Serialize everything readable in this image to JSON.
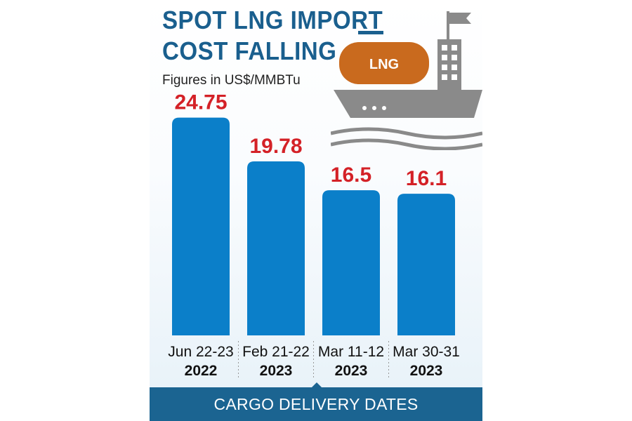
{
  "title_line1": "SPOT LNG IMPORT",
  "title_line2": "COST FALLING",
  "subtitle": "Figures in US$/MMBTu",
  "ship_label": "LNG",
  "footer": "CARGO DELIVERY DATES",
  "colors": {
    "bar": "#0b7fc9",
    "value_label": "#d42127",
    "title": "#1a5f8e",
    "tank": "#c96a1e",
    "ship": "#8a8a8a"
  },
  "chart_data": {
    "type": "bar",
    "title": "SPOT LNG IMPORT COST FALLING",
    "subtitle": "Figures in US$/MMBTu",
    "xlabel": "CARGO DELIVERY DATES",
    "ylabel": "",
    "categories": [
      {
        "dates": "Jun 22-23",
        "year": "2022"
      },
      {
        "dates": "Feb 21-22",
        "year": "2023"
      },
      {
        "dates": "Mar 11-12",
        "year": "2023"
      },
      {
        "dates": "Mar 30-31",
        "year": "2023"
      }
    ],
    "values": [
      24.75,
      19.78,
      16.5,
      16.1
    ],
    "value_labels": [
      "24.75",
      "19.78",
      "16.5",
      "16.1"
    ],
    "ylim": [
      0,
      26
    ],
    "grid": false,
    "legend": "none"
  }
}
